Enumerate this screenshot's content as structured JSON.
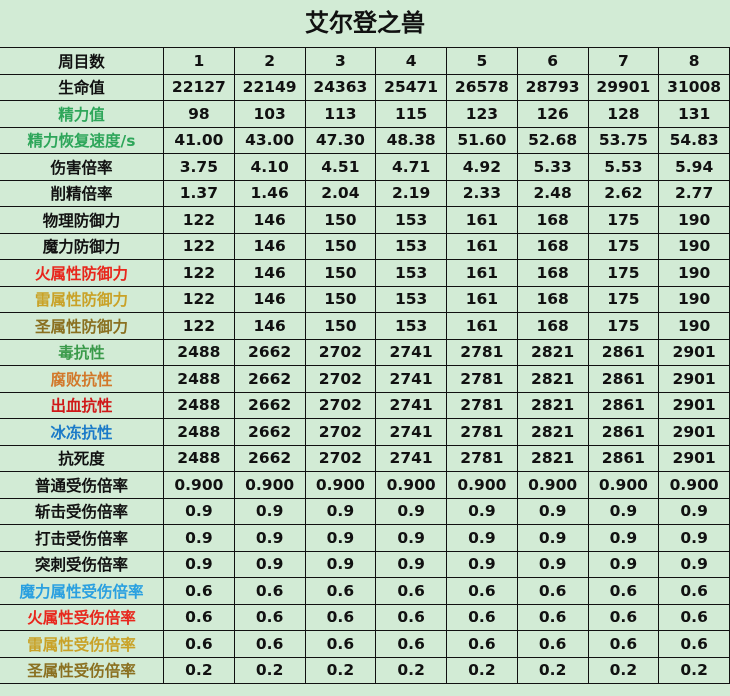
{
  "title": "艾尔登之兽",
  "header": {
    "label": "周目数",
    "values": [
      "1",
      "2",
      "3",
      "4",
      "5",
      "6",
      "7",
      "8"
    ]
  },
  "rows": [
    {
      "label": "生命值",
      "color": "#111111",
      "values": [
        "22127",
        "22149",
        "24363",
        "25471",
        "26578",
        "28793",
        "29901",
        "31008"
      ]
    },
    {
      "label": "精力值",
      "color": "#2ea65a",
      "values": [
        "98",
        "103",
        "113",
        "115",
        "123",
        "126",
        "128",
        "131"
      ]
    },
    {
      "label": "精力恢复速度/s",
      "color": "#2ea65a",
      "values": [
        "41.00",
        "43.00",
        "47.30",
        "48.38",
        "51.60",
        "52.68",
        "53.75",
        "54.83"
      ]
    },
    {
      "label": "伤害倍率",
      "color": "#111111",
      "values": [
        "3.75",
        "4.10",
        "4.51",
        "4.71",
        "4.92",
        "5.33",
        "5.53",
        "5.94"
      ]
    },
    {
      "label": "削精倍率",
      "color": "#111111",
      "values": [
        "1.37",
        "1.46",
        "2.04",
        "2.19",
        "2.33",
        "2.48",
        "2.62",
        "2.77"
      ]
    },
    {
      "label": "物理防御力",
      "color": "#111111",
      "values": [
        "122",
        "146",
        "150",
        "153",
        "161",
        "168",
        "175",
        "190"
      ]
    },
    {
      "label": "魔力防御力",
      "color": "#111111",
      "values": [
        "122",
        "146",
        "150",
        "153",
        "161",
        "168",
        "175",
        "190"
      ]
    },
    {
      "label": "火属性防御力",
      "color": "#e8261c",
      "values": [
        "122",
        "146",
        "150",
        "153",
        "161",
        "168",
        "175",
        "190"
      ]
    },
    {
      "label": "雷属性防御力",
      "color": "#c9a227",
      "values": [
        "122",
        "146",
        "150",
        "153",
        "161",
        "168",
        "175",
        "190"
      ]
    },
    {
      "label": "圣属性防御力",
      "color": "#8a7020",
      "values": [
        "122",
        "146",
        "150",
        "153",
        "161",
        "168",
        "175",
        "190"
      ]
    },
    {
      "label": "毒抗性",
      "color": "#3a9a4a",
      "values": [
        "2488",
        "2662",
        "2702",
        "2741",
        "2781",
        "2821",
        "2861",
        "2901"
      ]
    },
    {
      "label": "腐败抗性",
      "color": "#d2782a",
      "values": [
        "2488",
        "2662",
        "2702",
        "2741",
        "2781",
        "2821",
        "2861",
        "2901"
      ]
    },
    {
      "label": "出血抗性",
      "color": "#d01818",
      "values": [
        "2488",
        "2662",
        "2702",
        "2741",
        "2781",
        "2821",
        "2861",
        "2901"
      ]
    },
    {
      "label": "冰冻抗性",
      "color": "#1a7ac8",
      "values": [
        "2488",
        "2662",
        "2702",
        "2741",
        "2781",
        "2821",
        "2861",
        "2901"
      ]
    },
    {
      "label": "抗死度",
      "color": "#111111",
      "values": [
        "2488",
        "2662",
        "2702",
        "2741",
        "2781",
        "2821",
        "2861",
        "2901"
      ]
    },
    {
      "label": "普通受伤倍率",
      "color": "#111111",
      "values": [
        "0.900",
        "0.900",
        "0.900",
        "0.900",
        "0.900",
        "0.900",
        "0.900",
        "0.900"
      ]
    },
    {
      "label": "斩击受伤倍率",
      "color": "#111111",
      "values": [
        "0.9",
        "0.9",
        "0.9",
        "0.9",
        "0.9",
        "0.9",
        "0.9",
        "0.9"
      ]
    },
    {
      "label": "打击受伤倍率",
      "color": "#111111",
      "values": [
        "0.9",
        "0.9",
        "0.9",
        "0.9",
        "0.9",
        "0.9",
        "0.9",
        "0.9"
      ]
    },
    {
      "label": "突刺受伤倍率",
      "color": "#111111",
      "values": [
        "0.9",
        "0.9",
        "0.9",
        "0.9",
        "0.9",
        "0.9",
        "0.9",
        "0.9"
      ]
    },
    {
      "label": "魔力属性受伤倍率",
      "color": "#2aa0e0",
      "values": [
        "0.6",
        "0.6",
        "0.6",
        "0.6",
        "0.6",
        "0.6",
        "0.6",
        "0.6"
      ]
    },
    {
      "label": "火属性受伤倍率",
      "color": "#e8261c",
      "values": [
        "0.6",
        "0.6",
        "0.6",
        "0.6",
        "0.6",
        "0.6",
        "0.6",
        "0.6"
      ]
    },
    {
      "label": "雷属性受伤倍率",
      "color": "#c9a227",
      "values": [
        "0.6",
        "0.6",
        "0.6",
        "0.6",
        "0.6",
        "0.6",
        "0.6",
        "0.6"
      ]
    },
    {
      "label": "圣属性受伤倍率",
      "color": "#8a7020",
      "values": [
        "0.2",
        "0.2",
        "0.2",
        "0.2",
        "0.2",
        "0.2",
        "0.2",
        "0.2"
      ]
    }
  ]
}
